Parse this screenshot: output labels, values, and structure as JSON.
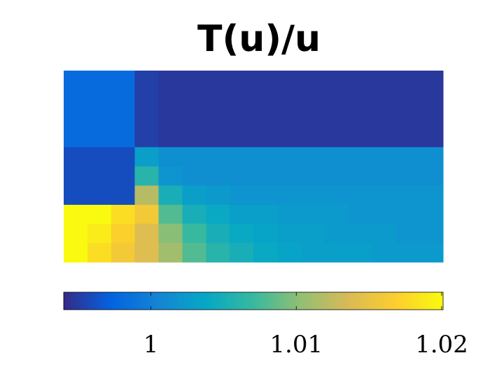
{
  "chart_data": {
    "type": "heatmap",
    "title": "T(u)/u",
    "colormap": "parula",
    "clim": [
      0.994,
      1.0201
    ],
    "z": [
      [
        0.998,
        0.998,
        0.998,
        0.9952,
        0.9948,
        0.9948,
        0.9948,
        0.9948,
        0.9948,
        0.9948,
        0.9948,
        0.9948,
        0.9948,
        0.9948,
        0.9948,
        0.9948
      ],
      [
        0.998,
        0.998,
        0.998,
        0.9952,
        0.9948,
        0.9948,
        0.9948,
        0.9948,
        0.9948,
        0.9948,
        0.9948,
        0.9948,
        0.9948,
        0.9948,
        0.9948,
        0.9948
      ],
      [
        0.998,
        0.998,
        0.998,
        0.9952,
        0.9948,
        0.9948,
        0.9948,
        0.9948,
        0.9948,
        0.9948,
        0.9948,
        0.9948,
        0.9948,
        0.9948,
        0.9948,
        0.9948
      ],
      [
        0.998,
        0.998,
        0.998,
        0.9952,
        0.9948,
        0.9948,
        0.9948,
        0.9948,
        0.9948,
        0.9948,
        0.9948,
        0.9948,
        0.9948,
        0.9948,
        0.9948,
        0.9948
      ],
      [
        0.996,
        0.996,
        0.996,
        1.003,
        1.0015,
        1.0015,
        1.0015,
        1.0015,
        1.0015,
        1.0015,
        1.0015,
        1.0015,
        1.0015,
        1.0015,
        1.0015,
        1.0015
      ],
      [
        0.996,
        0.996,
        0.996,
        1.006,
        1.002,
        1.0015,
        1.0015,
        1.0015,
        1.0015,
        1.0015,
        1.0015,
        1.0015,
        1.0015,
        1.0015,
        1.0015,
        1.0015
      ],
      [
        0.996,
        0.996,
        0.996,
        1.012,
        1.005,
        1.003,
        1.0025,
        1.002,
        1.002,
        1.002,
        1.002,
        1.002,
        1.002,
        1.002,
        1.002,
        1.002
      ],
      [
        1.02,
        1.02,
        1.018,
        1.016,
        1.008,
        1.005,
        1.004,
        1.003,
        1.003,
        1.0025,
        1.0025,
        1.0025,
        1.002,
        1.002,
        1.002,
        1.002
      ],
      [
        1.02,
        1.019,
        1.017,
        1.014,
        1.01,
        1.007,
        1.005,
        1.004,
        1.0035,
        1.003,
        1.003,
        1.0025,
        1.0025,
        1.0025,
        1.002,
        1.002
      ],
      [
        1.02,
        1.018,
        1.016,
        1.014,
        1.011,
        1.008,
        1.006,
        1.005,
        1.004,
        1.0035,
        1.003,
        1.003,
        1.003,
        1.0025,
        1.0025,
        1.0025
      ]
    ],
    "colorbar_ticks": [
      1,
      1.01,
      1.02
    ]
  }
}
